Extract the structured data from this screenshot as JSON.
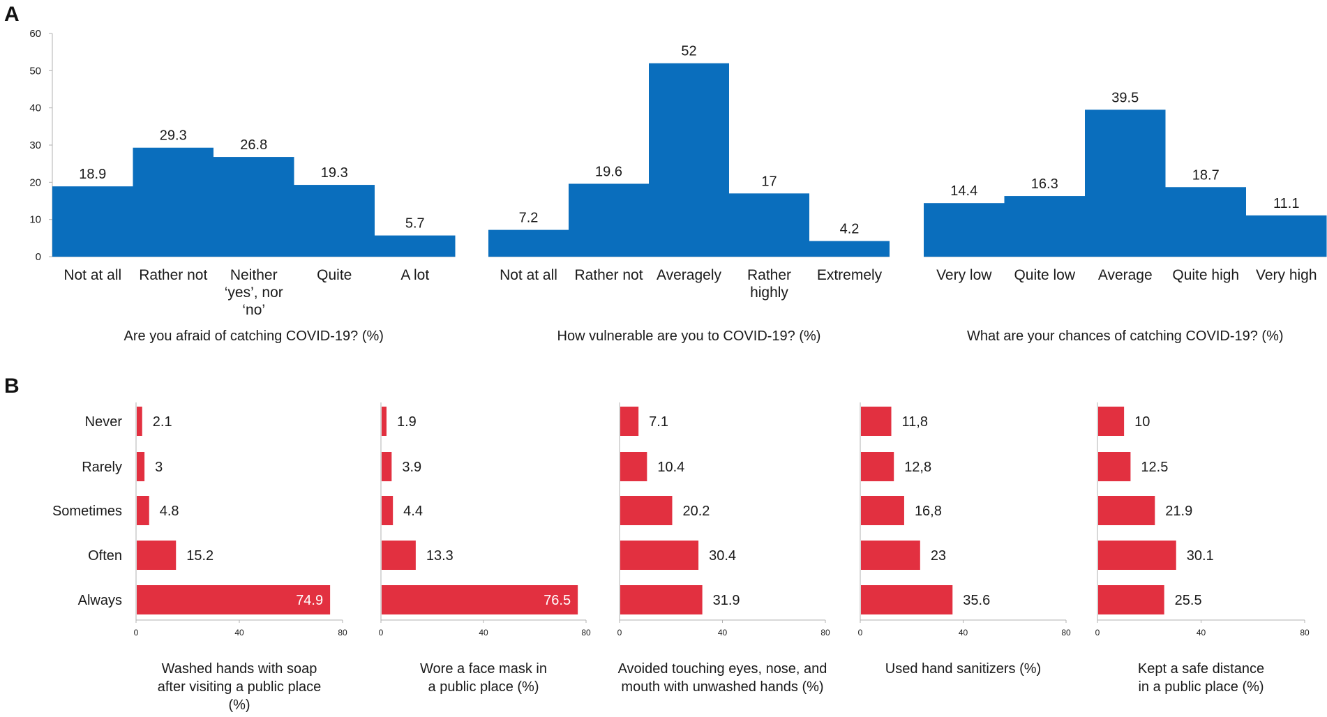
{
  "panel_labels": {
    "a": "A",
    "b": "B"
  },
  "colors": {
    "blue": "#0a6ebd",
    "red": "#e23040",
    "axis": "#b0b0b0",
    "text": "#1a1a1a",
    "inner_label": "#ffffff"
  },
  "chart_data": [
    {
      "type": "bar",
      "panel": "A",
      "title": "Are you afraid of catching COVID-19? (%)",
      "categories": [
        "Not at all",
        "Rather not",
        "Neither\n‘yes’, nor\n‘no’",
        "Quite",
        "A lot"
      ],
      "values": [
        18.9,
        29.3,
        26.8,
        19.3,
        5.7
      ],
      "value_labels": [
        "18.9",
        "29.3",
        "26.8",
        "19.3",
        "5.7"
      ],
      "ylim": [
        0,
        60
      ],
      "yticks": [
        "0",
        "10",
        "20",
        "30",
        "40",
        "50",
        "60"
      ]
    },
    {
      "type": "bar",
      "panel": "A",
      "title": "How vulnerable are you to COVID-19? (%)",
      "categories": [
        "Not at all",
        "Rather not",
        "Averagely",
        "Rather\nhighly",
        "Extremely"
      ],
      "values": [
        7.2,
        19.6,
        52,
        17,
        4.2
      ],
      "value_labels": [
        "7.2",
        "19.6",
        "52",
        "17",
        "4.2"
      ],
      "ylim": [
        0,
        60
      ]
    },
    {
      "type": "bar",
      "panel": "A",
      "title": "What are your chances of catching COVID-19? (%)",
      "categories": [
        "Very low",
        "Quite low",
        "Average",
        "Quite high",
        "Very high"
      ],
      "values": [
        14.4,
        16.3,
        39.5,
        18.7,
        11.1
      ],
      "value_labels": [
        "14.4",
        "16.3",
        "39.5",
        "18.7",
        "11.1"
      ],
      "ylim": [
        0,
        60
      ]
    },
    {
      "type": "hbar",
      "panel": "B",
      "title": "Washed hands with soap\nafter visiting a public place\n(%)",
      "categories": [
        "Never",
        "Rarely",
        "Sometimes",
        "Often",
        "Always"
      ],
      "values": [
        2.1,
        3,
        4.8,
        15.2,
        74.9
      ],
      "value_labels": [
        "2.1",
        "3",
        "4.8",
        "15.2",
        "74.9"
      ],
      "inside_label_index": 4,
      "xlim": [
        0,
        80
      ],
      "xticks": [
        "0",
        "40",
        "80"
      ]
    },
    {
      "type": "hbar",
      "panel": "B",
      "title": "Wore a face mask in\na public place (%)",
      "categories": [
        "Never",
        "Rarely",
        "Sometimes",
        "Often",
        "Always"
      ],
      "values": [
        1.9,
        3.9,
        4.4,
        13.3,
        76.5
      ],
      "value_labels": [
        "1.9",
        "3.9",
        "4.4",
        "13.3",
        "76.5"
      ],
      "inside_label_index": 4,
      "xlim": [
        0,
        80
      ],
      "xticks": [
        "0",
        "40",
        "80"
      ]
    },
    {
      "type": "hbar",
      "panel": "B",
      "title": "Avoided touching eyes, nose, and\nmouth with unwashed hands (%)",
      "categories": [
        "Never",
        "Rarely",
        "Sometimes",
        "Often",
        "Always"
      ],
      "values": [
        7.1,
        10.4,
        20.2,
        30.4,
        31.9
      ],
      "value_labels": [
        "7.1",
        "10.4",
        "20.2",
        "30.4",
        "31.9"
      ],
      "inside_label_index": -1,
      "xlim": [
        0,
        80
      ],
      "xticks": [
        "0",
        "40",
        "80"
      ]
    },
    {
      "type": "hbar",
      "panel": "B",
      "title": "Used hand sanitizers (%)",
      "categories": [
        "Never",
        "Rarely",
        "Sometimes",
        "Often",
        "Always"
      ],
      "values": [
        11.8,
        12.8,
        16.8,
        23,
        35.6
      ],
      "value_labels": [
        "11,8",
        "12,8",
        "16,8",
        "23",
        "35.6"
      ],
      "inside_label_index": -1,
      "xlim": [
        0,
        80
      ],
      "xticks": [
        "0",
        "40",
        "80"
      ]
    },
    {
      "type": "hbar",
      "panel": "B",
      "title": "Kept a safe distance\nin a public place (%)",
      "categories": [
        "Never",
        "Rarely",
        "Sometimes",
        "Often",
        "Always"
      ],
      "values": [
        10,
        12.5,
        21.9,
        30.1,
        25.5
      ],
      "value_labels": [
        "10",
        "12.5",
        "21.9",
        "30.1",
        "25.5"
      ],
      "inside_label_index": -1,
      "xlim": [
        0,
        80
      ],
      "xticks": [
        "0",
        "40",
        "80"
      ]
    }
  ]
}
